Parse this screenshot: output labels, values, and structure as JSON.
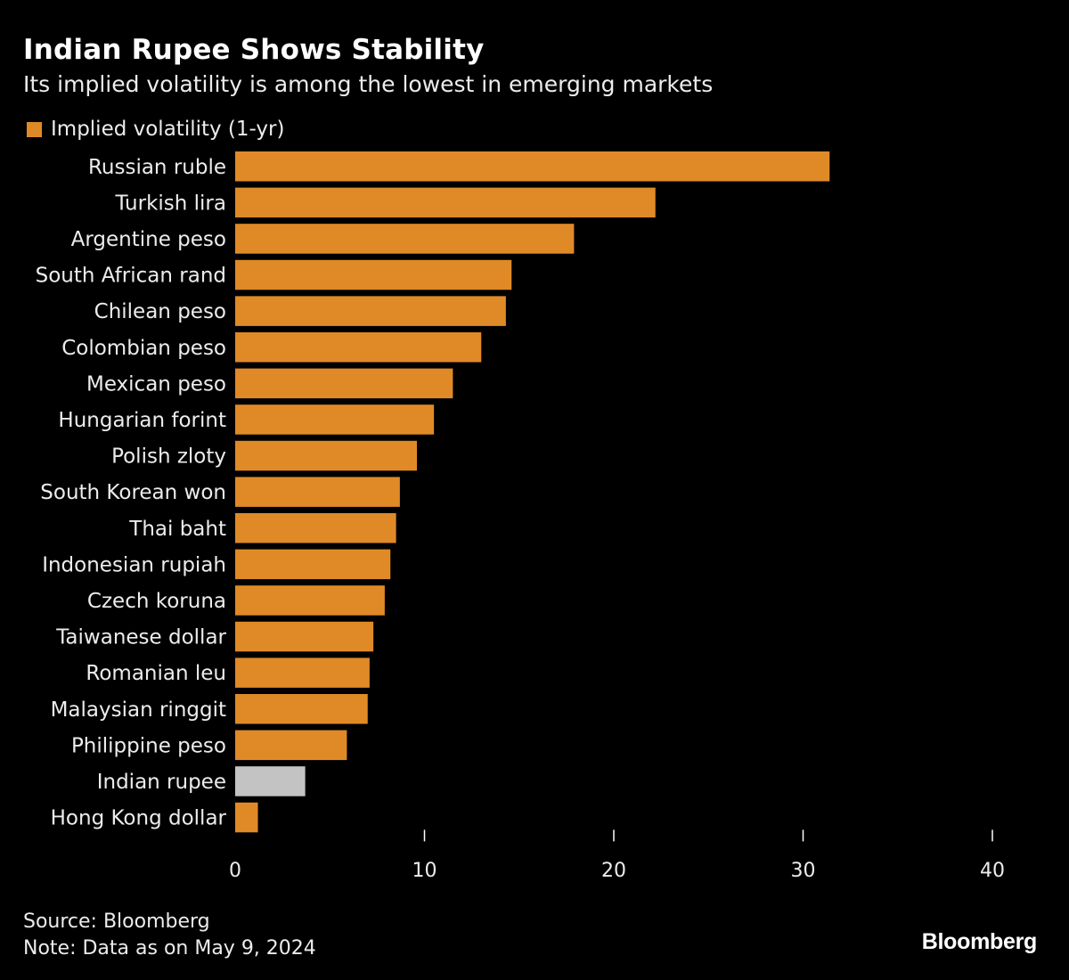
{
  "header": {
    "title": "Indian Rupee Shows Stability",
    "subtitle": "Its implied volatility is among the lowest in emerging markets"
  },
  "legend": {
    "label": "Implied volatility (1-yr)",
    "color": "#e08a27"
  },
  "chart_data": {
    "type": "bar",
    "orientation": "horizontal",
    "title": "Indian Rupee Shows Stability",
    "subtitle": "Its implied volatility is among the lowest in emerging markets",
    "xlabel": "",
    "ylabel": "",
    "xlim": [
      0,
      40
    ],
    "xticks": [
      0,
      10,
      20,
      30,
      40
    ],
    "legend_position": "top-left",
    "grid": false,
    "categories": [
      "Russian ruble",
      "Turkish lira",
      "Argentine peso",
      "South African rand",
      "Chilean peso",
      "Colombian peso",
      "Mexican peso",
      "Hungarian forint",
      "Polish zloty",
      "South Korean won",
      "Thai baht",
      "Indonesian rupiah",
      "Czech koruna",
      "Taiwanese dollar",
      "Romanian leu",
      "Malaysian ringgit",
      "Philippine peso",
      "Indian rupee",
      "Hong Kong dollar"
    ],
    "series": [
      {
        "name": "Implied volatility (1-yr)",
        "color": "#e08a27",
        "highlight_color": "#c3c3c3",
        "highlight_category": "Indian rupee",
        "values": [
          31.4,
          22.2,
          17.9,
          14.6,
          14.3,
          13.0,
          11.5,
          10.5,
          9.6,
          8.7,
          8.5,
          8.2,
          7.9,
          7.3,
          7.1,
          7.0,
          5.9,
          3.7,
          1.2
        ]
      }
    ]
  },
  "footer": {
    "source": "Source: Bloomberg",
    "note": "Note: Data as on May 9, 2024"
  },
  "brand": {
    "logo_text": "Bloomberg"
  }
}
